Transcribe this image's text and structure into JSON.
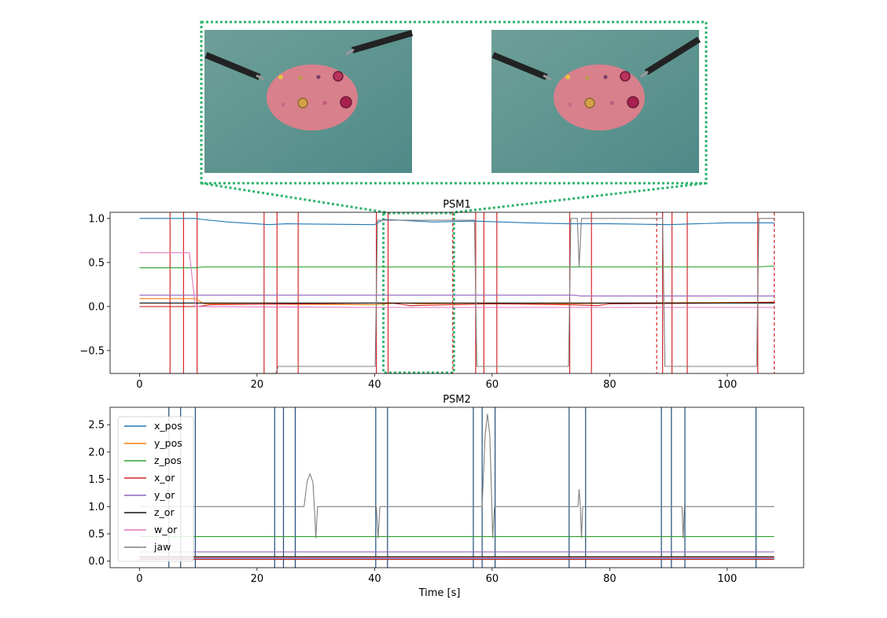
{
  "chart_data": [
    {
      "type": "line",
      "title": "PSM1",
      "xlabel": "",
      "ylabel": "",
      "xlim": [
        -5,
        113
      ],
      "ylim": [
        -0.76,
        1.07
      ],
      "xticks": [
        "0",
        "20",
        "40",
        "60",
        "80",
        "100"
      ],
      "yticks": [
        "−0.5",
        "0.0",
        "0.5",
        "1.0"
      ],
      "grid": false,
      "inset_images": {
        "count": 2,
        "source_range_x": [
          41.5,
          53.5
        ],
        "highlight_color": "#2db36b"
      },
      "event_lines": {
        "solid": [
          5.2,
          7.5,
          9.8,
          21.2,
          23.4,
          27.0,
          40.3,
          42.3,
          57.2,
          58.6,
          60.8,
          73.2,
          76.9,
          89.0,
          90.6,
          93.2,
          105.2
        ],
        "dashed": [
          53.3,
          88.0,
          108.0
        ],
        "color": "#d62728"
      },
      "series": [
        {
          "name": "x_pos",
          "color": "#1f77b4",
          "points": [
            [
              0,
              1.0
            ],
            [
              9.5,
              1.0
            ],
            [
              10.5,
              0.99
            ],
            [
              15,
              0.96
            ],
            [
              22,
              0.93
            ],
            [
              25,
              0.94
            ],
            [
              40,
              0.93
            ],
            [
              41.5,
              0.99
            ],
            [
              50,
              0.96
            ],
            [
              57,
              0.97
            ],
            [
              66,
              0.95
            ],
            [
              73,
              0.94
            ],
            [
              80,
              0.94
            ],
            [
              90,
              0.93
            ],
            [
              100,
              0.95
            ],
            [
              108,
              0.95
            ]
          ]
        },
        {
          "name": "y_pos",
          "color": "#ff7f0e",
          "points": [
            [
              0,
              0.09
            ],
            [
              9.5,
              0.09
            ],
            [
              11,
              0.03
            ],
            [
              40,
              0.02
            ],
            [
              44,
              0.04
            ],
            [
              48,
              0.03
            ],
            [
              60,
              0.04
            ],
            [
              73,
              0.03
            ],
            [
              80,
              0.04
            ],
            [
              108,
              0.05
            ]
          ]
        },
        {
          "name": "z_pos",
          "color": "#2ca02c",
          "points": [
            [
              0,
              0.44
            ],
            [
              9.5,
              0.44
            ],
            [
              11,
              0.45
            ],
            [
              40,
              0.45
            ],
            [
              60,
              0.45
            ],
            [
              73,
              0.45
            ],
            [
              80,
              0.45
            ],
            [
              105,
              0.45
            ],
            [
              108,
              0.46
            ]
          ]
        },
        {
          "name": "x_or",
          "color": "#d62728",
          "points": [
            [
              0,
              0.0
            ],
            [
              10,
              0.0
            ],
            [
              12,
              0.02
            ],
            [
              40,
              0.04
            ],
            [
              43,
              0.04
            ],
            [
              46,
              0.01
            ],
            [
              60,
              0.03
            ],
            [
              73,
              0.02
            ],
            [
              78,
              0.01
            ],
            [
              80,
              0.03
            ],
            [
              100,
              0.04
            ],
            [
              108,
              0.05
            ]
          ]
        },
        {
          "name": "y_or",
          "color": "#9467bd",
          "points": [
            [
              0,
              0.13
            ],
            [
              40,
              0.13
            ],
            [
              74,
              0.13
            ],
            [
              75,
              0.12
            ],
            [
              108,
              0.12
            ]
          ]
        },
        {
          "name": "z_or",
          "color": "#111111",
          "points": [
            [
              0,
              0.04
            ],
            [
              40,
              0.04
            ],
            [
              108,
              0.04
            ]
          ]
        },
        {
          "name": "w_or",
          "color": "#e377c2",
          "points": [
            [
              0,
              0.61
            ],
            [
              8.5,
              0.61
            ],
            [
              9.5,
              0.0
            ],
            [
              40,
              -0.01
            ],
            [
              108,
              -0.01
            ]
          ]
        },
        {
          "name": "jaw",
          "color": "#7f7f7f",
          "points": [
            [
              0,
              -0.76
            ],
            [
              23.2,
              -0.76
            ],
            [
              23.6,
              -0.68
            ],
            [
              40.1,
              -0.68
            ],
            [
              40.5,
              0.98
            ],
            [
              57,
              0.98
            ],
            [
              57.4,
              -0.68
            ],
            [
              73,
              -0.68
            ],
            [
              73.4,
              1.0
            ],
            [
              74.5,
              1.0
            ],
            [
              74.8,
              0.45
            ],
            [
              75.2,
              1.0
            ],
            [
              89,
              1.0
            ],
            [
              89.4,
              -0.68
            ],
            [
              105,
              -0.68
            ],
            [
              105.4,
              1.0
            ],
            [
              108,
              1.0
            ]
          ]
        }
      ]
    },
    {
      "type": "line",
      "title": "PSM2",
      "xlabel": "Time [s]",
      "ylabel": "",
      "xlim": [
        -5,
        113
      ],
      "ylim": [
        -0.12,
        2.82
      ],
      "xticks": [
        "0",
        "20",
        "40",
        "60",
        "80",
        "100"
      ],
      "yticks": [
        "0.0",
        "0.5",
        "1.0",
        "1.5",
        "2.0",
        "2.5"
      ],
      "grid": false,
      "legend_position": "upper-left",
      "event_lines": {
        "solid": [
          5.0,
          7.0,
          9.5,
          23.0,
          24.5,
          26.5,
          40.2,
          42.2,
          56.8,
          58.3,
          60.5,
          73.1,
          75.9,
          88.8,
          90.5,
          92.8,
          104.9
        ],
        "color": "#1f4e79"
      },
      "series": [
        {
          "name": "x_pos",
          "color": "#1f77b4",
          "points": [
            [
              0,
              0.05
            ],
            [
              108,
              0.05
            ]
          ]
        },
        {
          "name": "y_pos",
          "color": "#ff7f0e",
          "points": [
            [
              0,
              0.07
            ],
            [
              108,
              0.07
            ]
          ]
        },
        {
          "name": "z_pos",
          "color": "#2ca02c",
          "points": [
            [
              0,
              0.45
            ],
            [
              108,
              0.45
            ]
          ]
        },
        {
          "name": "x_or",
          "color": "#d62728",
          "points": [
            [
              0,
              0.03
            ],
            [
              108,
              0.03
            ]
          ]
        },
        {
          "name": "y_or",
          "color": "#9467bd",
          "points": [
            [
              0,
              0.17
            ],
            [
              108,
              0.17
            ]
          ]
        },
        {
          "name": "z_or",
          "color": "#111111",
          "points": [
            [
              0,
              0.08
            ],
            [
              108,
              0.08
            ]
          ]
        },
        {
          "name": "w_or",
          "color": "#e377c2",
          "points": [
            [
              0,
              0.06
            ],
            [
              108,
              0.06
            ]
          ]
        },
        {
          "name": "jaw",
          "color": "#7f7f7f",
          "points": [
            [
              0,
              1.0
            ],
            [
              28,
              1.0
            ],
            [
              28.5,
              1.45
            ],
            [
              29,
              1.6
            ],
            [
              29.5,
              1.45
            ],
            [
              29.8,
              0.9
            ],
            [
              30,
              0.42
            ],
            [
              30.3,
              1.0
            ],
            [
              40.3,
              1.0
            ],
            [
              40.6,
              0.42
            ],
            [
              40.9,
              1.0
            ],
            [
              58.3,
              1.0
            ],
            [
              58.8,
              2.3
            ],
            [
              59.2,
              2.7
            ],
            [
              59.6,
              2.3
            ],
            [
              59.9,
              1.2
            ],
            [
              60.1,
              0.42
            ],
            [
              60.4,
              1.0
            ],
            [
              74.6,
              1.0
            ],
            [
              74.8,
              1.32
            ],
            [
              75.0,
              1.0
            ],
            [
              75.2,
              0.42
            ],
            [
              75.4,
              1.0
            ],
            [
              92.3,
              1.0
            ],
            [
              92.5,
              0.42
            ],
            [
              92.7,
              1.0
            ],
            [
              108,
              1.0
            ]
          ]
        }
      ]
    }
  ]
}
